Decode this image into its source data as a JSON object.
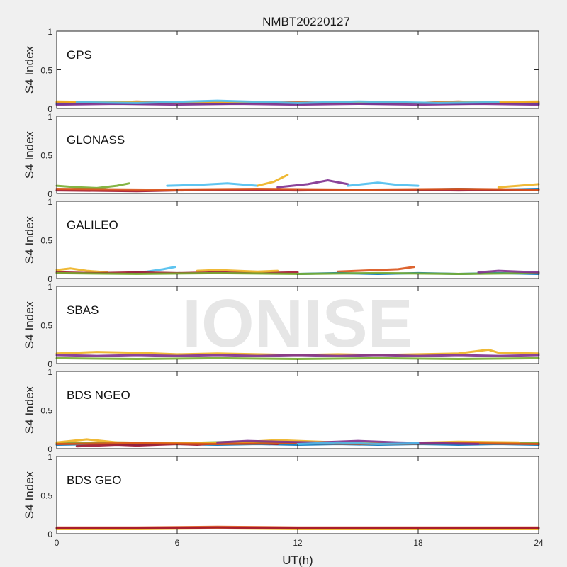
{
  "figure": {
    "title": "NMBT20220127",
    "xlabel": "UT(h)",
    "watermark": "IONISE"
  },
  "colors": {
    "figure_bg": "#f0f0f0",
    "axes_bg": "#ffffff",
    "axes_line": "#262626",
    "watermark": "#e6e6e6"
  },
  "chart_data": [
    {
      "type": "scatter",
      "panel_label": "GPS",
      "ylabel": "S4 Index",
      "xlim": [
        0,
        24
      ],
      "ylim": [
        0,
        1
      ],
      "xticks": [
        0,
        6,
        12,
        18,
        24
      ],
      "yticks": [
        0,
        0.5,
        1
      ],
      "ytick_labels": [
        "0",
        "0.5",
        "1"
      ],
      "series": [
        {
          "color": "#0072BD",
          "x": [
            0,
            2,
            4,
            6,
            8,
            10,
            12,
            14,
            16,
            18,
            20,
            22,
            24
          ],
          "y": [
            0.06,
            0.07,
            0.06,
            0.07,
            0.06,
            0.07,
            0.06,
            0.07,
            0.06,
            0.07,
            0.06,
            0.07,
            0.06
          ]
        },
        {
          "color": "#D95319",
          "x": [
            0,
            2,
            4,
            6,
            8,
            10,
            12,
            14,
            16,
            18,
            20,
            22,
            24
          ],
          "y": [
            0.08,
            0.07,
            0.09,
            0.07,
            0.08,
            0.07,
            0.08,
            0.07,
            0.08,
            0.07,
            0.09,
            0.07,
            0.08
          ]
        },
        {
          "color": "#EDB120",
          "x": [
            0,
            3,
            6,
            9,
            12,
            15,
            18,
            21,
            24
          ],
          "y": [
            0.09,
            0.08,
            0.07,
            0.08,
            0.07,
            0.08,
            0.07,
            0.08,
            0.09
          ]
        },
        {
          "color": "#7E2F8E",
          "x": [
            0,
            3,
            6,
            9,
            12,
            15,
            18,
            21,
            24
          ],
          "y": [
            0.05,
            0.06,
            0.05,
            0.06,
            0.05,
            0.06,
            0.05,
            0.06,
            0.05
          ]
        },
        {
          "color": "#4DBEEE",
          "x": [
            1,
            4,
            8,
            12,
            15,
            19,
            22
          ],
          "y": [
            0.08,
            0.07,
            0.1,
            0.07,
            0.09,
            0.07,
            0.08
          ]
        }
      ]
    },
    {
      "type": "scatter",
      "panel_label": "GLONASS",
      "ylabel": "S4 Index",
      "xlim": [
        0,
        24
      ],
      "ylim": [
        0,
        1
      ],
      "xticks": [
        0,
        6,
        12,
        18,
        24
      ],
      "yticks": [
        0,
        0.5,
        1
      ],
      "ytick_labels": [
        "0",
        "0.5",
        "1"
      ],
      "series": [
        {
          "color": "#77AC30",
          "x": [
            0,
            1,
            2,
            3,
            3.6
          ],
          "y": [
            0.1,
            0.08,
            0.07,
            0.1,
            0.13
          ]
        },
        {
          "color": "#4DBEEE",
          "x": [
            5.5,
            7,
            8.5,
            10
          ],
          "y": [
            0.1,
            0.11,
            0.13,
            0.1
          ]
        },
        {
          "color": "#EDB120",
          "x": [
            10,
            10.8,
            11.5
          ],
          "y": [
            0.1,
            0.15,
            0.24
          ]
        },
        {
          "color": "#7E2F8E",
          "x": [
            11,
            12.5,
            13.5,
            14.5
          ],
          "y": [
            0.08,
            0.12,
            0.17,
            0.12
          ]
        },
        {
          "color": "#4DBEEE",
          "x": [
            14.5,
            16,
            17,
            18
          ],
          "y": [
            0.1,
            0.14,
            0.11,
            0.1
          ]
        },
        {
          "color": "#0072BD",
          "x": [
            18,
            20,
            22,
            24
          ],
          "y": [
            0.05,
            0.06,
            0.05,
            0.06
          ]
        },
        {
          "color": "#EDB120",
          "x": [
            22,
            23,
            24
          ],
          "y": [
            0.08,
            0.1,
            0.12
          ]
        },
        {
          "color": "#A2142F",
          "x": [
            0,
            4,
            8,
            12,
            16,
            20,
            24
          ],
          "y": [
            0.04,
            0.03,
            0.05,
            0.04,
            0.05,
            0.04,
            0.05
          ]
        },
        {
          "color": "#D95319",
          "x": [
            0,
            5,
            10,
            15,
            20,
            24
          ],
          "y": [
            0.06,
            0.05,
            0.06,
            0.05,
            0.06,
            0.05
          ]
        }
      ]
    },
    {
      "type": "scatter",
      "panel_label": "GALILEO",
      "ylabel": "S4 Index",
      "xlim": [
        0,
        24
      ],
      "ylim": [
        0,
        1
      ],
      "xticks": [
        0,
        6,
        12,
        18,
        24
      ],
      "yticks": [
        0,
        0.5,
        1
      ],
      "ytick_labels": [
        "0",
        "0.5",
        "1"
      ],
      "series": [
        {
          "color": "#EDB120",
          "x": [
            0,
            0.7,
            1.5,
            2.5
          ],
          "y": [
            0.11,
            0.13,
            0.1,
            0.08
          ]
        },
        {
          "color": "#4DBEEE",
          "x": [
            3.5,
            4.5,
            5.3,
            5.9
          ],
          "y": [
            0.07,
            0.09,
            0.12,
            0.15
          ]
        },
        {
          "color": "#A2142F",
          "x": [
            0,
            2,
            4,
            6,
            8,
            10,
            12
          ],
          "y": [
            0.08,
            0.07,
            0.08,
            0.07,
            0.08,
            0.07,
            0.08
          ]
        },
        {
          "color": "#EDB120",
          "x": [
            7,
            8,
            9,
            10,
            11
          ],
          "y": [
            0.1,
            0.11,
            0.1,
            0.09,
            0.1
          ]
        },
        {
          "color": "#D95319",
          "x": [
            14,
            15,
            16,
            17,
            17.8
          ],
          "y": [
            0.09,
            0.1,
            0.11,
            0.12,
            0.15
          ]
        },
        {
          "color": "#0072BD",
          "x": [
            12,
            14,
            16,
            18,
            20,
            22,
            24
          ],
          "y": [
            0.06,
            0.07,
            0.06,
            0.07,
            0.06,
            0.07,
            0.06
          ]
        },
        {
          "color": "#77AC30",
          "x": [
            0,
            4,
            8,
            12,
            16,
            20,
            24
          ],
          "y": [
            0.07,
            0.06,
            0.07,
            0.06,
            0.07,
            0.06,
            0.07
          ]
        },
        {
          "color": "#7E2F8E",
          "x": [
            21,
            22,
            23,
            24
          ],
          "y": [
            0.08,
            0.1,
            0.09,
            0.08
          ]
        }
      ]
    },
    {
      "type": "scatter",
      "panel_label": "SBAS",
      "ylabel": "S4 Index",
      "xlim": [
        0,
        24
      ],
      "ylim": [
        0,
        1
      ],
      "xticks": [
        0,
        6,
        12,
        18,
        24
      ],
      "yticks": [
        0,
        0.5,
        1
      ],
      "ytick_labels": [
        "0",
        "0.5",
        "1"
      ],
      "series": [
        {
          "color": "#EDB120",
          "x": [
            0,
            2,
            4,
            6,
            8,
            10,
            12,
            14,
            16,
            18,
            20,
            21.5,
            22,
            24
          ],
          "y": [
            0.13,
            0.15,
            0.14,
            0.12,
            0.13,
            0.12,
            0.11,
            0.12,
            0.11,
            0.12,
            0.13,
            0.18,
            0.14,
            0.13
          ]
        },
        {
          "color": "#7E2F8E",
          "x": [
            0,
            2,
            4,
            6,
            8,
            10,
            12,
            14,
            16,
            18,
            20,
            22,
            24
          ],
          "y": [
            0.11,
            0.1,
            0.11,
            0.1,
            0.11,
            0.1,
            0.11,
            0.1,
            0.11,
            0.1,
            0.11,
            0.1,
            0.11
          ]
        },
        {
          "color": "#77AC30",
          "x": [
            0,
            4,
            8,
            12,
            16,
            20,
            24
          ],
          "y": [
            0.07,
            0.06,
            0.07,
            0.06,
            0.07,
            0.06,
            0.07
          ]
        }
      ]
    },
    {
      "type": "scatter",
      "panel_label": "BDS NGEO",
      "ylabel": "S4 Index",
      "xlim": [
        0,
        24
      ],
      "ylim": [
        0,
        1
      ],
      "xticks": [
        0,
        6,
        12,
        18,
        24
      ],
      "yticks": [
        0,
        0.5,
        1
      ],
      "ytick_labels": [
        "0",
        "0.5",
        "1"
      ],
      "series": [
        {
          "color": "#0072BD",
          "x": [
            0,
            2,
            4,
            6,
            8,
            10,
            12,
            14,
            16,
            18,
            20,
            22,
            24
          ],
          "y": [
            0.05,
            0.06,
            0.05,
            0.06,
            0.05,
            0.06,
            0.05,
            0.06,
            0.05,
            0.06,
            0.05,
            0.06,
            0.05
          ]
        },
        {
          "color": "#A2142F",
          "x": [
            1,
            2,
            3,
            4,
            5,
            6,
            7,
            8,
            9,
            10,
            11
          ],
          "y": [
            0.03,
            0.04,
            0.05,
            0.04,
            0.05,
            0.06,
            0.05,
            0.07,
            0.08,
            0.07,
            0.06
          ]
        },
        {
          "color": "#77AC30",
          "x": [
            0,
            3,
            6,
            9,
            12,
            15,
            18,
            21,
            24
          ],
          "y": [
            0.07,
            0.08,
            0.07,
            0.09,
            0.07,
            0.08,
            0.07,
            0.08,
            0.07
          ]
        },
        {
          "color": "#EDB120",
          "x": [
            0,
            1.5,
            3,
            6,
            9,
            11,
            14,
            17,
            20,
            23
          ],
          "y": [
            0.08,
            0.12,
            0.08,
            0.07,
            0.08,
            0.11,
            0.08,
            0.07,
            0.09,
            0.08
          ]
        },
        {
          "color": "#D95319",
          "x": [
            0,
            4,
            8,
            12,
            16,
            20,
            24
          ],
          "y": [
            0.06,
            0.07,
            0.06,
            0.07,
            0.06,
            0.07,
            0.06
          ]
        },
        {
          "color": "#7E2F8E",
          "x": [
            8,
            9.5,
            11,
            13,
            15,
            17,
            19,
            21
          ],
          "y": [
            0.08,
            0.1,
            0.09,
            0.08,
            0.1,
            0.08,
            0.07,
            0.06
          ]
        },
        {
          "color": "#4DBEEE",
          "x": [
            12,
            14,
            16,
            18
          ],
          "y": [
            0.06,
            0.08,
            0.06,
            0.07
          ]
        }
      ]
    },
    {
      "type": "scatter",
      "panel_label": "BDS GEO",
      "ylabel": "S4 Index",
      "xlim": [
        0,
        24
      ],
      "ylim": [
        0,
        1
      ],
      "xticks": [
        0,
        6,
        12,
        18,
        24
      ],
      "yticks": [
        0,
        0.5,
        1
      ],
      "ytick_labels": [
        "0",
        "0.5",
        "1"
      ],
      "xtick_labels": [
        "0",
        "6",
        "12",
        "18",
        "24"
      ],
      "series": [
        {
          "color": "#EDB120",
          "x": [
            0,
            4,
            8,
            12,
            16,
            20,
            24
          ],
          "y": [
            0.06,
            0.06,
            0.07,
            0.06,
            0.06,
            0.06,
            0.06
          ]
        },
        {
          "color": "#D95319",
          "x": [
            0,
            4,
            8,
            12,
            16,
            20,
            24
          ],
          "y": [
            0.08,
            0.08,
            0.09,
            0.08,
            0.08,
            0.08,
            0.08
          ]
        },
        {
          "color": "#A2142F",
          "x": [
            0,
            4,
            8,
            12,
            16,
            20,
            24
          ],
          "y": [
            0.07,
            0.07,
            0.08,
            0.07,
            0.07,
            0.07,
            0.07
          ]
        }
      ]
    }
  ]
}
